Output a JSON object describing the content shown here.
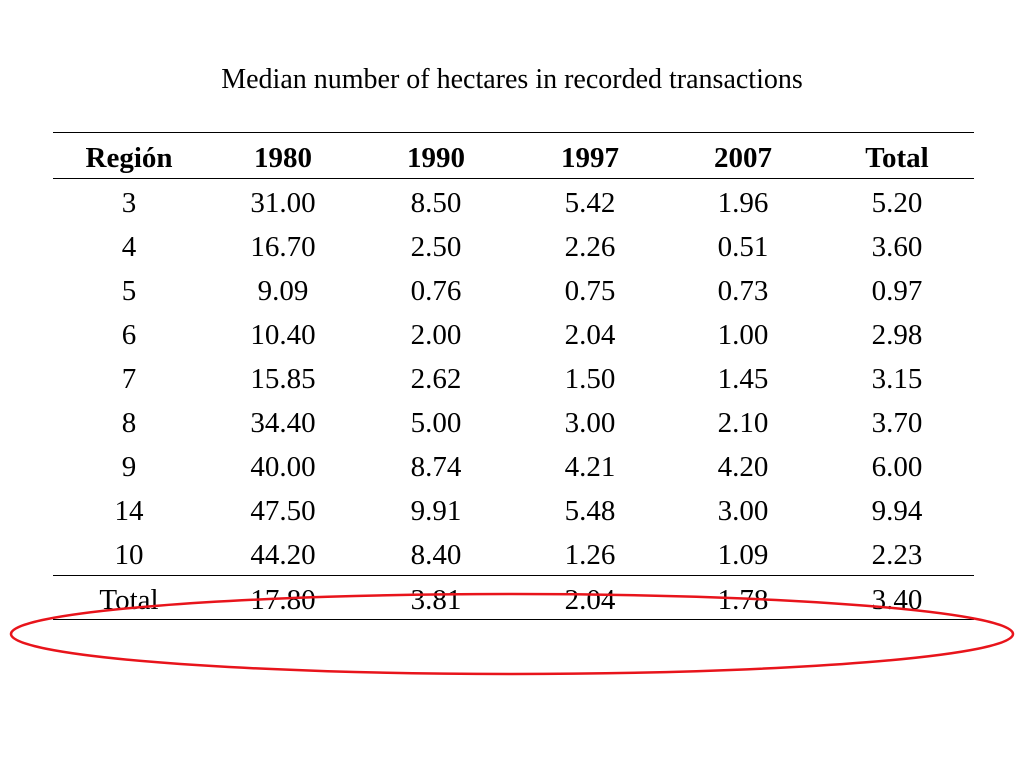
{
  "title": "Median number of hectares in recorded transactions",
  "table": {
    "headers": [
      "Región",
      "1980",
      "1990",
      "1997",
      "2007",
      "Total"
    ],
    "rows": [
      [
        "3",
        "31.00",
        "8.50",
        "5.42",
        "1.96",
        "5.20"
      ],
      [
        "4",
        "16.70",
        "2.50",
        "2.26",
        "0.51",
        "3.60"
      ],
      [
        "5",
        "9.09",
        "0.76",
        "0.75",
        "0.73",
        "0.97"
      ],
      [
        "6",
        "10.40",
        "2.00",
        "2.04",
        "1.00",
        "2.98"
      ],
      [
        "7",
        "15.85",
        "2.62",
        "1.50",
        "1.45",
        "3.15"
      ],
      [
        "8",
        "34.40",
        "5.00",
        "3.00",
        "2.10",
        "3.70"
      ],
      [
        "9",
        "40.00",
        "8.74",
        "4.21",
        "4.20",
        "6.00"
      ],
      [
        "14",
        "47.50",
        "9.91",
        "5.48",
        "3.00",
        "9.94"
      ],
      [
        "10",
        "44.20",
        "8.40",
        "1.26",
        "1.09",
        "2.23"
      ]
    ],
    "total_row": [
      "Total",
      "17.80",
      "3.81",
      "2.04",
      "1.78",
      "3.40"
    ]
  },
  "annotation": {
    "shape": "ellipse-outline",
    "color": "#e8141b",
    "highlights": "total_row"
  }
}
